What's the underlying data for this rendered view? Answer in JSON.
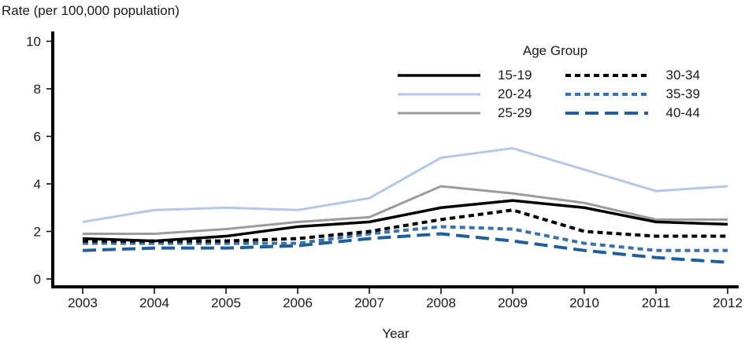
{
  "title": "Rate (per 100,000 population)",
  "x_axis_title": "Year",
  "legend": {
    "title": "Age Group",
    "columns": [
      [
        "15-19",
        "20-24",
        "25-29"
      ],
      [
        "30-34",
        "35-39",
        "40-44"
      ]
    ]
  },
  "colors": {
    "black": "#000000",
    "light_blue": "#b5c7e5",
    "gray": "#9b9b9d",
    "medium_blue": "#3b72aa",
    "dark_blue": "#1e5e99",
    "text": "#1a1a1a"
  },
  "chart_data": {
    "type": "line",
    "title": "Rate (per 100,000 population)",
    "xlabel": "Year",
    "ylabel": "Rate (per 100,000 population)",
    "x": [
      2003,
      2004,
      2005,
      2006,
      2007,
      2008,
      2009,
      2010,
      2011,
      2012
    ],
    "ylim": [
      0,
      10
    ],
    "yticks": [
      0,
      2,
      4,
      6,
      8,
      10
    ],
    "grid": false,
    "legend_title": "Age Group",
    "legend_position": "top-center",
    "series": [
      {
        "name": "20-24",
        "color": "#b5c7e5",
        "style": "solid",
        "width": 3,
        "values": [
          2.4,
          2.9,
          3.0,
          2.9,
          3.4,
          5.1,
          5.5,
          4.6,
          3.7,
          3.9
        ]
      },
      {
        "name": "25-29",
        "color": "#9b9b9d",
        "style": "solid",
        "width": 3,
        "values": [
          1.9,
          1.9,
          2.1,
          2.4,
          2.6,
          3.9,
          3.6,
          3.2,
          2.5,
          2.5
        ]
      },
      {
        "name": "15-19",
        "color": "#000000",
        "style": "solid",
        "width": 3.5,
        "values": [
          1.7,
          1.6,
          1.8,
          2.2,
          2.4,
          3.0,
          3.3,
          3.0,
          2.4,
          2.3
        ]
      },
      {
        "name": "40-44",
        "color": "#1e5e99",
        "style": "dash-long",
        "width": 4,
        "values": [
          1.2,
          1.3,
          1.3,
          1.4,
          1.7,
          1.9,
          1.6,
          1.2,
          0.9,
          0.7
        ]
      },
      {
        "name": "35-39",
        "color": "#3b72aa",
        "style": "dash-small",
        "width": 4,
        "values": [
          1.5,
          1.5,
          1.5,
          1.5,
          1.9,
          2.2,
          2.1,
          1.5,
          1.2,
          1.2
        ]
      },
      {
        "name": "30-34",
        "color": "#000000",
        "style": "dash-small",
        "width": 4,
        "values": [
          1.6,
          1.6,
          1.6,
          1.7,
          2.0,
          2.5,
          2.9,
          2.0,
          1.8,
          1.8
        ]
      }
    ]
  }
}
